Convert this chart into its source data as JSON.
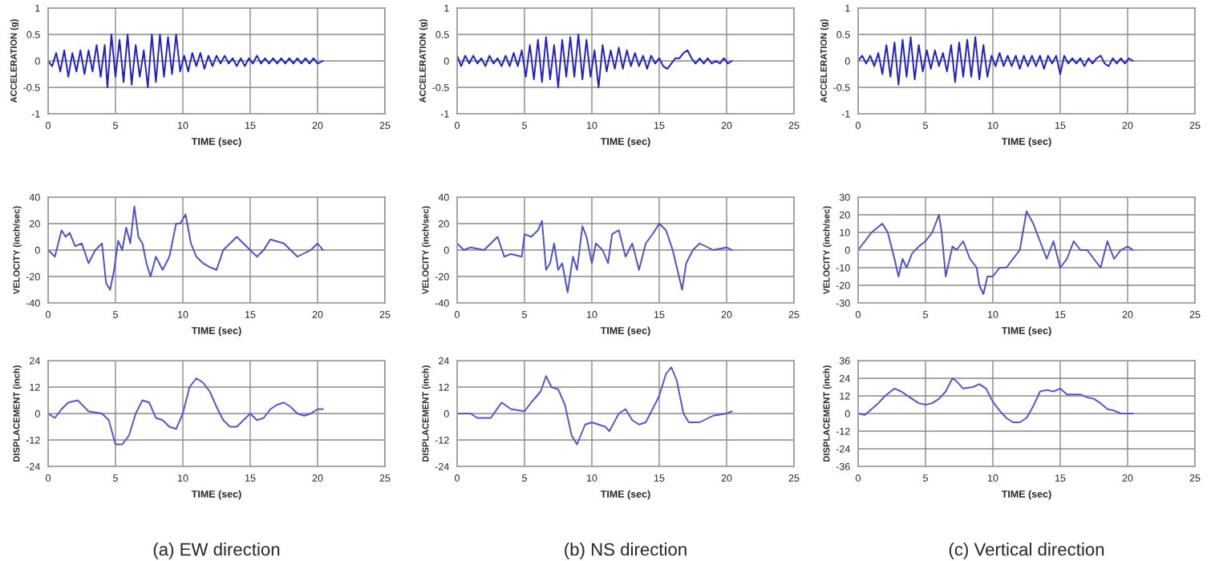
{
  "chart_data": [
    {
      "type": "line",
      "xlabel": "TIME (sec)",
      "ylabel": "ACCELERATION (g)",
      "xlim": [
        0,
        25
      ],
      "xticks": [
        0,
        5,
        10,
        15,
        20,
        25
      ],
      "ylim": [
        -1,
        1
      ],
      "yticks": [
        -1,
        -0.5,
        0,
        0.5,
        1
      ],
      "grid": true,
      "x": [
        0,
        0.3,
        0.6,
        0.9,
        1.2,
        1.5,
        1.8,
        2.1,
        2.4,
        2.7,
        3.0,
        3.3,
        3.6,
        3.9,
        4.2,
        4.4,
        4.7,
        5.0,
        5.3,
        5.6,
        5.9,
        6.2,
        6.5,
        6.8,
        7.1,
        7.4,
        7.7,
        8.0,
        8.3,
        8.6,
        8.9,
        9.2,
        9.5,
        9.8,
        10.1,
        10.4,
        10.7,
        11.0,
        11.3,
        11.6,
        11.9,
        12.2,
        12.5,
        12.8,
        13.1,
        13.4,
        13.7,
        14.0,
        14.3,
        14.6,
        14.9,
        15.2,
        15.5,
        15.8,
        16.1,
        16.4,
        16.7,
        17.0,
        17.3,
        17.6,
        17.9,
        18.2,
        18.5,
        18.8,
        19.1,
        19.4,
        19.7,
        20.0,
        20.4
      ],
      "series": [
        {
          "color": "#1f1fc4",
          "values": [
            0,
            -0.1,
            0.15,
            -0.2,
            0.2,
            -0.3,
            0.15,
            -0.2,
            0.2,
            -0.25,
            0.2,
            -0.2,
            0.3,
            -0.3,
            0.3,
            -0.5,
            0.5,
            -0.3,
            0.4,
            -0.4,
            0.5,
            -0.45,
            0.3,
            -0.3,
            0.2,
            -0.5,
            0.5,
            -0.4,
            0.5,
            -0.3,
            0.45,
            -0.25,
            0.5,
            -0.2,
            0.1,
            -0.2,
            0.15,
            -0.1,
            0.15,
            -0.15,
            0.1,
            -0.1,
            0.1,
            -0.05,
            0.1,
            -0.05,
            0.05,
            -0.1,
            0.05,
            -0.1,
            0.05,
            -0.05,
            0.1,
            -0.05,
            0.05,
            -0.05,
            0.05,
            -0.05,
            0.05,
            -0.05,
            0.05,
            -0.05,
            0.05,
            -0.05,
            0.05,
            -0.05,
            0.05,
            -0.05,
            0
          ]
        }
      ]
    },
    {
      "type": "line",
      "xlabel": "TIME (sec)",
      "ylabel": "ACCELERATION (g)",
      "xlim": [
        0,
        25
      ],
      "xticks": [
        0,
        5,
        10,
        15,
        20,
        25
      ],
      "ylim": [
        -1,
        1
      ],
      "yticks": [
        -1,
        -0.5,
        0,
        0.5,
        1
      ],
      "grid": true,
      "x": [
        0,
        0.3,
        0.6,
        0.9,
        1.2,
        1.5,
        1.8,
        2.1,
        2.4,
        2.7,
        3.0,
        3.3,
        3.6,
        3.9,
        4.2,
        4.5,
        4.8,
        5.1,
        5.4,
        5.7,
        6.0,
        6.3,
        6.6,
        6.9,
        7.2,
        7.5,
        7.8,
        8.1,
        8.4,
        8.7,
        9.0,
        9.3,
        9.6,
        9.9,
        10.2,
        10.5,
        10.8,
        11.1,
        11.4,
        11.7,
        12.0,
        12.3,
        12.6,
        12.9,
        13.2,
        13.5,
        13.8,
        14.1,
        14.4,
        14.7,
        15.0,
        15.3,
        15.6,
        15.9,
        16.2,
        16.5,
        16.8,
        17.1,
        17.4,
        17.7,
        18.0,
        18.3,
        18.6,
        18.9,
        19.2,
        19.5,
        19.8,
        20.1,
        20.4
      ],
      "series": [
        {
          "color": "#1f1fc4",
          "values": [
            0.1,
            -0.1,
            0.1,
            -0.05,
            0.1,
            -0.05,
            0.05,
            -0.1,
            0.1,
            -0.05,
            0.05,
            -0.1,
            0.1,
            -0.1,
            0.15,
            -0.1,
            0.2,
            -0.3,
            0.3,
            -0.35,
            0.4,
            -0.4,
            0.45,
            -0.35,
            0.3,
            -0.5,
            0.4,
            -0.3,
            0.45,
            -0.3,
            0.5,
            -0.35,
            0.4,
            -0.3,
            0.2,
            -0.5,
            0.3,
            -0.2,
            0.2,
            -0.15,
            0.25,
            -0.15,
            0.2,
            -0.1,
            0.15,
            -0.1,
            0.1,
            -0.15,
            0.1,
            -0.05,
            0.05,
            -0.1,
            -0.15,
            -0.05,
            0.05,
            0.05,
            0.15,
            0.2,
            0.05,
            -0.05,
            0.05,
            -0.05,
            0.05,
            -0.05,
            0,
            -0.05,
            0.05,
            -0.05,
            0
          ]
        }
      ]
    },
    {
      "type": "line",
      "xlabel": "TIME (sec)",
      "ylabel": "ACCELERATION (g)",
      "xlim": [
        0,
        25
      ],
      "xticks": [
        0,
        5,
        10,
        15,
        20,
        25
      ],
      "ylim": [
        -1,
        1
      ],
      "yticks": [
        -1,
        -0.5,
        0,
        0.5,
        1
      ],
      "grid": true,
      "x": [
        0,
        0.3,
        0.6,
        0.9,
        1.2,
        1.5,
        1.8,
        2.1,
        2.4,
        2.7,
        3.0,
        3.3,
        3.6,
        3.9,
        4.2,
        4.5,
        4.8,
        5.1,
        5.4,
        5.7,
        6.0,
        6.3,
        6.6,
        6.9,
        7.2,
        7.5,
        7.8,
        8.1,
        8.4,
        8.7,
        9.0,
        9.3,
        9.6,
        9.9,
        10.2,
        10.5,
        10.8,
        11.1,
        11.4,
        11.7,
        12.0,
        12.3,
        12.6,
        12.9,
        13.2,
        13.5,
        13.8,
        14.1,
        14.4,
        14.7,
        15.0,
        15.3,
        15.6,
        15.9,
        16.2,
        16.5,
        16.8,
        17.1,
        17.4,
        17.7,
        18.0,
        18.3,
        18.6,
        18.9,
        19.2,
        19.5,
        19.8,
        20.1,
        20.4
      ],
      "series": [
        {
          "color": "#1f1fc4",
          "values": [
            0,
            0.1,
            -0.05,
            0.1,
            -0.1,
            0.15,
            -0.25,
            0.3,
            -0.3,
            0.35,
            -0.45,
            0.4,
            -0.3,
            0.45,
            -0.35,
            0.3,
            -0.2,
            0.2,
            -0.15,
            0.2,
            -0.1,
            0.15,
            -0.2,
            0.3,
            -0.4,
            0.35,
            -0.3,
            0.4,
            -0.3,
            0.45,
            -0.35,
            0.3,
            -0.3,
            0.1,
            -0.1,
            0.15,
            -0.1,
            0.1,
            -0.1,
            0.1,
            -0.15,
            0.1,
            -0.1,
            0.1,
            -0.1,
            0.1,
            -0.15,
            0.1,
            -0.05,
            0.1,
            -0.25,
            0.1,
            -0.05,
            0.05,
            -0.05,
            0.05,
            -0.1,
            0.05,
            -0.05,
            0.05,
            0.1,
            -0.05,
            -0.1,
            0.05,
            -0.05,
            0.05,
            -0.05,
            0.05,
            0
          ]
        }
      ]
    },
    {
      "type": "line",
      "xlabel": "TIME (sec)",
      "ylabel": "VELOCITY (inch/sec)",
      "xlim": [
        0,
        25
      ],
      "xticks": [
        0,
        5,
        10,
        15,
        20,
        25
      ],
      "ylim": [
        -40,
        40
      ],
      "yticks": [
        -40,
        -20,
        0,
        20,
        40
      ],
      "grid": true,
      "x": [
        0,
        0.5,
        1,
        1.3,
        1.6,
        2,
        2.5,
        3,
        3.5,
        4,
        4.3,
        4.6,
        4.9,
        5.2,
        5.5,
        5.8,
        6.1,
        6.4,
        6.7,
        7,
        7.3,
        7.6,
        8,
        8.5,
        9,
        9.5,
        9.8,
        10.2,
        10.6,
        11,
        11.5,
        12,
        12.5,
        13,
        14,
        15,
        15.5,
        16,
        16.5,
        17.5,
        18,
        18.5,
        19.5,
        20,
        20.4
      ],
      "series": [
        {
          "color": "#4f4fc8",
          "values": [
            0,
            -5,
            15,
            10,
            13,
            3,
            5,
            -10,
            0,
            5,
            -25,
            -30,
            -15,
            7,
            0,
            17,
            5,
            33,
            10,
            5,
            -10,
            -20,
            -5,
            -15,
            -5,
            20,
            20,
            27,
            5,
            -5,
            -10,
            -13,
            -15,
            0,
            10,
            0,
            -5,
            0,
            8,
            5,
            0,
            -5,
            0,
            5,
            0
          ]
        }
      ]
    },
    {
      "type": "line",
      "xlabel": "TIME (sec)",
      "ylabel": "VELOCITY (inch/sec)",
      "xlim": [
        0,
        25
      ],
      "xticks": [
        0,
        5,
        10,
        15,
        20,
        25
      ],
      "ylim": [
        -40,
        40
      ],
      "yticks": [
        -40,
        -20,
        0,
        20,
        40
      ],
      "grid": true,
      "x": [
        0,
        0.5,
        1,
        2,
        3,
        3.5,
        4,
        4.8,
        5,
        5.5,
        6,
        6.3,
        6.6,
        6.9,
        7.2,
        7.5,
        7.8,
        8.2,
        8.6,
        8.9,
        9.3,
        9.6,
        10,
        10.3,
        10.8,
        11.2,
        11.5,
        12,
        12.5,
        13,
        13.5,
        14,
        14.5,
        15,
        15.5,
        16,
        16.7,
        17,
        17.5,
        18,
        19,
        20,
        20.4
      ],
      "series": [
        {
          "color": "#4f4fc8",
          "values": [
            5,
            0,
            2,
            0,
            10,
            -5,
            -3,
            -5,
            12,
            10,
            15,
            22,
            -15,
            -10,
            5,
            -15,
            -10,
            -32,
            -5,
            -15,
            18,
            10,
            -10,
            5,
            0,
            -10,
            12,
            15,
            -5,
            5,
            -15,
            5,
            12,
            20,
            15,
            0,
            -30,
            -10,
            0,
            5,
            0,
            2,
            0
          ]
        }
      ]
    },
    {
      "type": "line",
      "xlabel": "TIME (sec)",
      "ylabel": "VELOCITY (inch/sec)",
      "xlim": [
        0,
        25
      ],
      "xticks": [
        0,
        5,
        10,
        15,
        20,
        25
      ],
      "ylim": [
        -30,
        30
      ],
      "yticks": [
        -30,
        -20,
        -10,
        0,
        10,
        20,
        30
      ],
      "grid": true,
      "x": [
        0,
        0.5,
        1,
        1.8,
        2.2,
        2.7,
        3,
        3.3,
        3.6,
        4,
        4.5,
        5,
        5.5,
        6,
        6.2,
        6.5,
        7,
        7.3,
        7.8,
        8.3,
        8.8,
        9,
        9.3,
        9.6,
        10,
        10.5,
        11,
        11.5,
        12,
        12.5,
        13,
        13.5,
        14,
        14.5,
        15,
        15.5,
        16,
        16.5,
        17,
        17.5,
        18,
        18.5,
        19,
        19.5,
        20,
        20.4
      ],
      "series": [
        {
          "color": "#4f4fc8",
          "values": [
            0,
            5,
            10,
            15,
            10,
            -5,
            -15,
            -5,
            -10,
            -2,
            2,
            5,
            10,
            20,
            10,
            -15,
            2,
            0,
            5,
            -5,
            -10,
            -20,
            -25,
            -15,
            -15,
            -10,
            -10,
            -5,
            0,
            22,
            15,
            5,
            -5,
            5,
            -10,
            -5,
            5,
            0,
            0,
            -5,
            -10,
            5,
            -5,
            0,
            2,
            0
          ]
        }
      ]
    },
    {
      "type": "line",
      "xlabel": "TIME (sec)",
      "ylabel": "DISPLACEMENT (inch)",
      "xlim": [
        0,
        25
      ],
      "xticks": [
        0,
        5,
        10,
        15,
        20,
        25
      ],
      "ylim": [
        -24,
        24
      ],
      "yticks": [
        -24,
        -12,
        0,
        12,
        24
      ],
      "grid": true,
      "annotations": [
        "(a) EW direction"
      ],
      "x": [
        0,
        0.5,
        1,
        1.5,
        2.2,
        3,
        4,
        4.5,
        5,
        5.5,
        6,
        6.5,
        7,
        7.5,
        8,
        8.5,
        9,
        9.5,
        10,
        10.5,
        11,
        11.5,
        12,
        12.5,
        13,
        13.5,
        14,
        14.5,
        15,
        15.5,
        16,
        16.5,
        17,
        17.5,
        18,
        18.5,
        19,
        19.5,
        20,
        20.4
      ],
      "series": [
        {
          "color": "#5555cc",
          "values": [
            0,
            -2,
            2,
            5,
            6,
            1,
            0,
            -3,
            -14,
            -14,
            -10,
            0,
            6,
            5,
            -2,
            -3,
            -6,
            -7,
            0,
            12,
            16,
            14,
            10,
            3,
            -3,
            -6,
            -6,
            -3,
            0,
            -3,
            -2,
            2,
            4,
            5,
            3,
            0,
            -1,
            0,
            2,
            2
          ]
        }
      ]
    },
    {
      "type": "line",
      "xlabel": "TIME (sec)",
      "ylabel": "DISPLACEMENT (inch)",
      "xlim": [
        0,
        25
      ],
      "xticks": [
        0,
        5,
        10,
        15,
        20,
        25
      ],
      "ylim": [
        -24,
        24
      ],
      "yticks": [
        -24,
        -12,
        0,
        12,
        24
      ],
      "grid": true,
      "annotations": [
        "(b) NS direction"
      ],
      "x": [
        0,
        1,
        1.5,
        2.5,
        3.3,
        4,
        5,
        5.5,
        6.2,
        6.6,
        7,
        7.5,
        8,
        8.5,
        8.9,
        9.5,
        10,
        10.5,
        11,
        11.3,
        12,
        12.5,
        13,
        13.5,
        14,
        14.5,
        15,
        15.5,
        15.9,
        16.3,
        16.8,
        17.2,
        18,
        19,
        20,
        20.4
      ],
      "series": [
        {
          "color": "#5555cc",
          "values": [
            0,
            0,
            -2,
            -2,
            5,
            2,
            1,
            5,
            10,
            17,
            12,
            11,
            4,
            -10,
            -14,
            -5,
            -4,
            -5,
            -6,
            -8,
            0,
            2,
            -3,
            -5,
            -4,
            2,
            8,
            18,
            21,
            15,
            0,
            -4,
            -4,
            -1,
            0,
            1
          ]
        }
      ]
    },
    {
      "type": "line",
      "xlabel": "TIME (sec)",
      "ylabel": "DISPLACEMENT (inch)",
      "xlim": [
        0,
        25
      ],
      "xticks": [
        0,
        5,
        10,
        15,
        20,
        25
      ],
      "ylim": [
        -36,
        36
      ],
      "yticks": [
        -36,
        -24,
        -12,
        0,
        12,
        24,
        36
      ],
      "grid": true,
      "annotations": [
        "(c) Vertical direction"
      ],
      "x": [
        0,
        0.5,
        1,
        1.5,
        2,
        2.7,
        3.2,
        4,
        4.5,
        5,
        5.5,
        6,
        6.5,
        7,
        7.3,
        7.8,
        8.5,
        9,
        9.5,
        10,
        10.5,
        11,
        11.5,
        12,
        12.5,
        13,
        13.5,
        14,
        14.5,
        15,
        15.5,
        16,
        16.5,
        17,
        17.5,
        18,
        18.5,
        19,
        19.5,
        20,
        20.4
      ],
      "series": [
        {
          "color": "#5555cc",
          "values": [
            0,
            -1,
            3,
            7,
            12,
            17,
            15,
            10,
            7,
            6,
            7,
            10,
            15,
            24,
            22,
            17,
            18,
            20,
            17,
            8,
            2,
            -3,
            -6,
            -6,
            -3,
            5,
            15,
            16,
            15,
            17,
            13,
            13,
            13,
            11,
            10,
            7,
            3,
            2,
            0,
            0,
            0
          ]
        }
      ]
    }
  ]
}
